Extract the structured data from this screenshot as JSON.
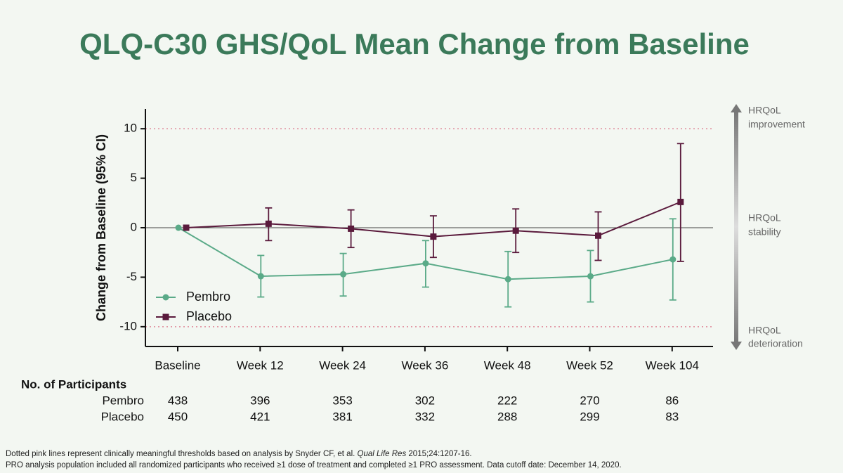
{
  "chart_data": {
    "type": "line",
    "title": "QLQ-C30 GHS/QoL Mean Change from Baseline",
    "y_label": "Change from Baseline (95% CI)",
    "categories": [
      "Baseline",
      "Week 12",
      "Week 24",
      "Week 36",
      "Week 48",
      "Week 52",
      "Week 104"
    ],
    "series": [
      {
        "name": "Pembro",
        "color": "#5aaa88",
        "marker": "circle",
        "values": [
          0,
          -4.9,
          -4.7,
          -3.6,
          -5.2,
          -4.9,
          -3.2
        ],
        "ci_low": [
          null,
          -7.0,
          -6.9,
          -6.0,
          -8.0,
          -7.5,
          -7.3
        ],
        "ci_high": [
          null,
          -2.8,
          -2.6,
          -1.3,
          -2.4,
          -2.3,
          0.9
        ]
      },
      {
        "name": "Placebo",
        "color": "#5a1a3c",
        "marker": "square",
        "values": [
          0,
          0.4,
          -0.1,
          -0.9,
          -0.3,
          -0.8,
          2.6
        ],
        "ci_low": [
          null,
          -1.3,
          -2.0,
          -3.0,
          -2.5,
          -3.3,
          -3.4
        ],
        "ci_high": [
          null,
          2.0,
          1.8,
          1.2,
          1.9,
          1.6,
          8.5
        ]
      }
    ],
    "ylim": [
      -12,
      12
    ],
    "yticks": [
      -10,
      -5,
      0,
      5,
      10
    ],
    "reference_lines": [
      10,
      -10
    ],
    "reference_color": "#e08a9a",
    "legend": "lower-left",
    "annotations": [
      [
        "HRQoL",
        "improvement"
      ],
      [
        "HRQoL",
        "stability"
      ],
      [
        "HRQoL",
        "deterioration"
      ]
    ],
    "participants": {
      "title": "No. of Participants",
      "rows": [
        {
          "name": "Pembro",
          "values": [
            438,
            396,
            353,
            302,
            222,
            270,
            86
          ]
        },
        {
          "name": "Placebo",
          "values": [
            450,
            421,
            381,
            332,
            288,
            299,
            83
          ]
        }
      ]
    },
    "footnotes": [
      [
        "Dotted pink lines represent clinically meaningful thresholds based on analysis by Snyder CF, et al. ",
        "Qual Life Res",
        " 2015;24:1207-16."
      ],
      [
        "PRO analysis population included all randomized participants who received ≥1 dose of treatment and completed ≥1 PRO assessment. Data cutoff date: December 14, 2020."
      ]
    ]
  }
}
